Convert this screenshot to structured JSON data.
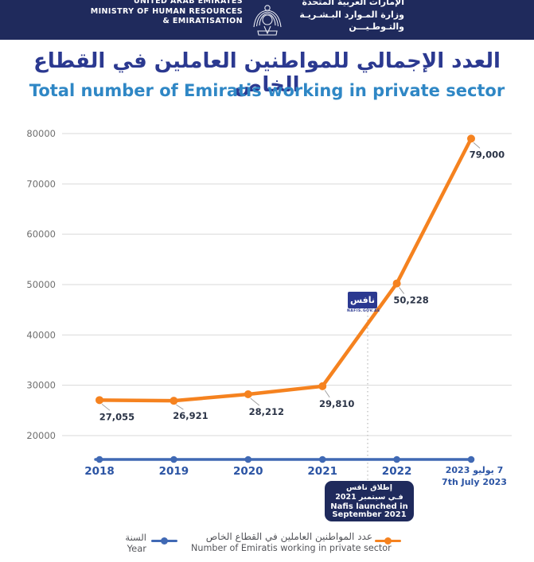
{
  "colors": {
    "navy": "#1f2a5c",
    "title_ar_blue": "#2b3990",
    "title_en_blue": "#2f87c5",
    "series_orange": "#f5821f",
    "year_blue": "#4069b4",
    "year_label_blue": "#2b54a4",
    "grid_gray": "#d9d9d9"
  },
  "header": {
    "en_lines": [
      "UNITED ARAB EMIRATES",
      "MINISTRY OF HUMAN RESOURCES",
      "& EMIRATISATION"
    ],
    "ar_lines": [
      "الإمارات العربية المتحدة",
      "وزارة المـوارد البـشـريـة",
      "والتـوطـيـــن"
    ],
    "emblem": "uae-falcon-emblem"
  },
  "title": {
    "ar": "العدد الإجمالي للمواطنين العاملين في القطاع الخاص",
    "en": "Total number of Emiratis working in private sector"
  },
  "chart_data": {
    "type": "line",
    "title": "Total number of Emiratis working in private sector",
    "categories": [
      "2018",
      "2019",
      "2020",
      "2021",
      "2022",
      "2023"
    ],
    "x_labels": [
      {
        "main": "2018"
      },
      {
        "main": "2019"
      },
      {
        "main": "2020"
      },
      {
        "main": "2021"
      },
      {
        "main": "2022"
      },
      {
        "main": "7 يوليو 2023",
        "sub": "7th July 2023",
        "rtl": true
      }
    ],
    "series": [
      {
        "name": "Number of Emiratis working in private sector",
        "name_ar": "عدد المواطنين العاملين في القطاع الخاص",
        "color": "#f5821f",
        "values": [
          27055,
          26921,
          28212,
          29810,
          50228,
          79000
        ],
        "value_labels": [
          "27,055",
          "26,921",
          "28,212",
          "29,810",
          "50,228",
          "79,000"
        ]
      },
      {
        "name": "Year",
        "name_ar": "السنة",
        "color": "#4069b4",
        "role": "x-axis-year-line"
      }
    ],
    "ylim": [
      20000,
      80000
    ],
    "ytick_step": 10000,
    "yticks": [
      20000,
      30000,
      40000,
      50000,
      60000,
      70000,
      80000
    ],
    "grid": true,
    "legend_position": "bottom",
    "annotation": {
      "ar_line1": "إطلاق نافس",
      "ar_line2": "فـي سبتمبر 2021",
      "en_line1": "Nafis launched in",
      "en_line2": "September 2021",
      "marker_between": "2021 and 2022"
    },
    "nafis_logo": {
      "text_ar": "نافس",
      "text_sub": "NAFIS.GOV.AE"
    }
  }
}
